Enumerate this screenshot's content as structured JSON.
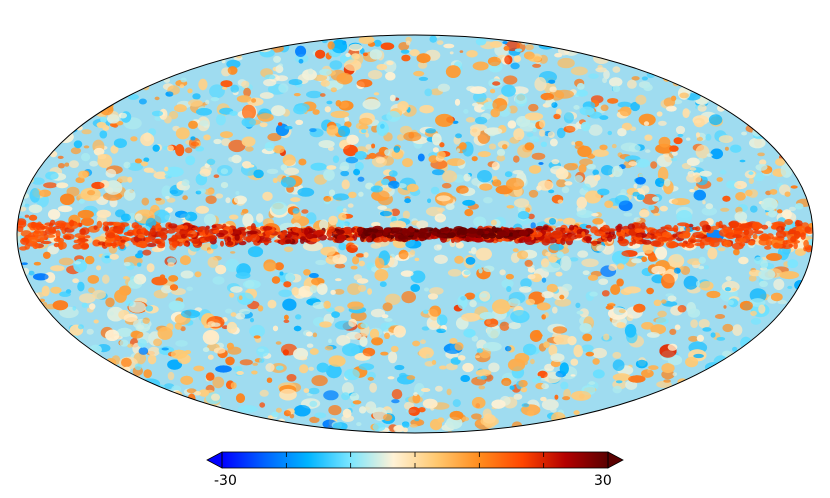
{
  "map": {
    "projection": "mollweide",
    "background_color": "#ffffff",
    "outline_color": "#000000"
  },
  "colorbar": {
    "min_label": "-30",
    "max_label": "30",
    "min": -30,
    "max": 30,
    "tick_values": [
      -30,
      -20,
      -10,
      0,
      10,
      20,
      30
    ],
    "colormap": [
      "#0000ff",
      "#0064ff",
      "#00b4ff",
      "#7be6ff",
      "#fff2d6",
      "#ffc870",
      "#ff8c1e",
      "#ff4600",
      "#b40000",
      "#5a0000"
    ]
  }
}
